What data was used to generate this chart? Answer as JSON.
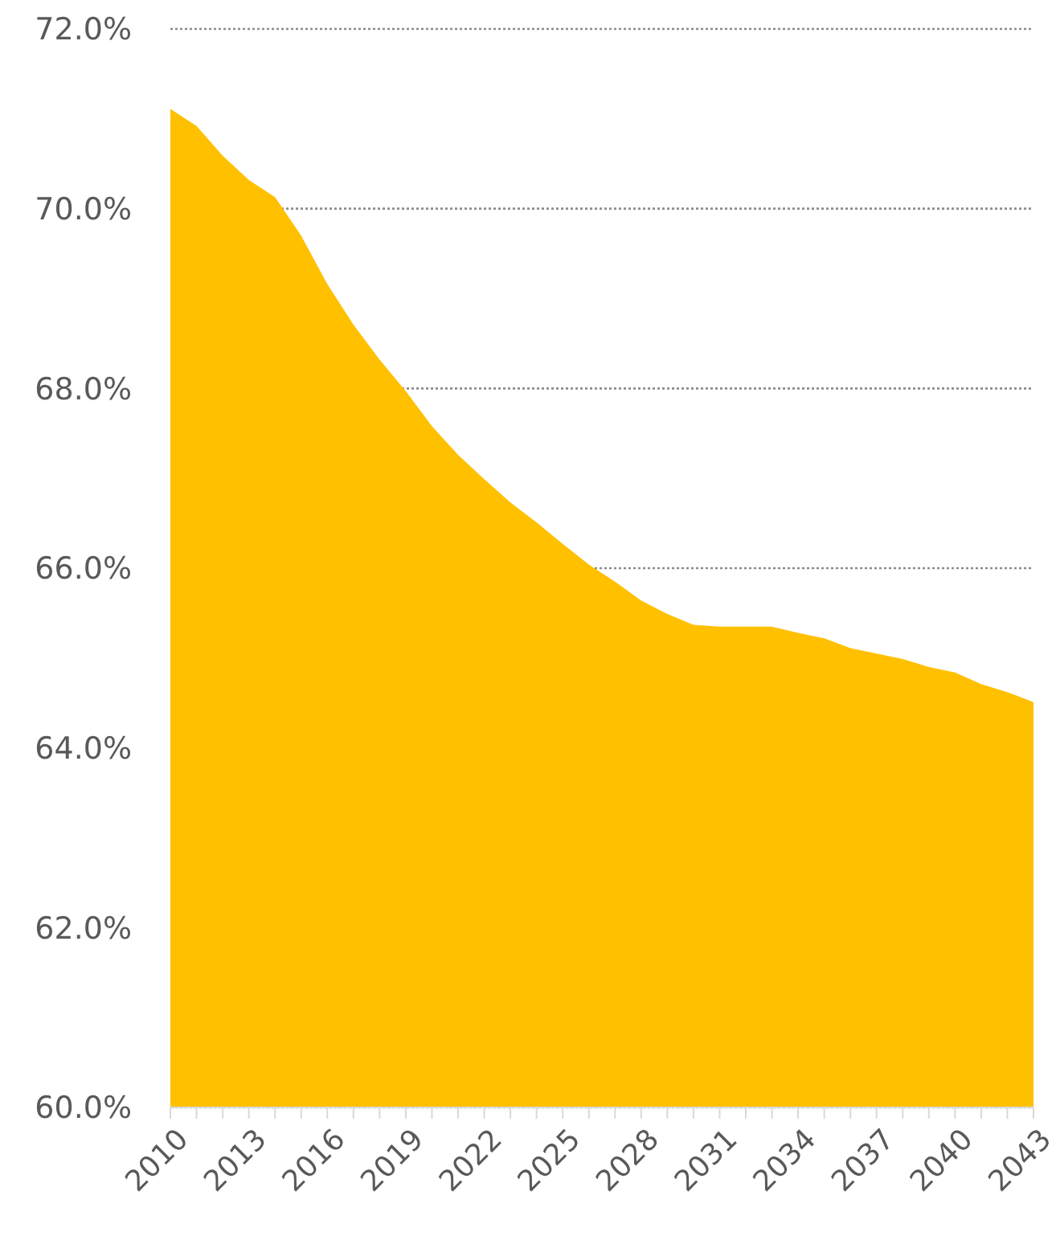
{
  "chart_data": {
    "type": "area",
    "x": [
      2010,
      2011,
      2012,
      2013,
      2014,
      2015,
      2016,
      2017,
      2018,
      2019,
      2020,
      2021,
      2022,
      2023,
      2024,
      2025,
      2026,
      2027,
      2028,
      2029,
      2030,
      2031,
      2032,
      2033,
      2034,
      2035,
      2036,
      2037,
      2038,
      2039,
      2040,
      2041,
      2042,
      2043
    ],
    "series": [
      {
        "color": "#ffc000",
        "values": [
          71.11,
          70.92,
          70.59,
          70.32,
          70.13,
          69.7,
          69.16,
          68.71,
          68.32,
          67.97,
          67.58,
          67.26,
          66.99,
          66.73,
          66.51,
          66.27,
          66.04,
          65.85,
          65.64,
          65.49,
          65.37,
          65.35,
          65.35,
          65.35,
          65.28,
          65.22,
          65.11,
          65.05,
          64.99,
          64.9,
          64.84,
          64.71,
          64.62,
          64.51
        ]
      }
    ],
    "xlim": [
      2010,
      2043
    ],
    "xticks": [
      2010,
      {
        "value": 2011,
        "label": null
      },
      {
        "value": 2012,
        "label": null
      },
      2013,
      {
        "value": 2014,
        "label": null
      },
      {
        "value": 2015,
        "label": null
      },
      2016,
      {
        "value": 2017,
        "label": null
      },
      {
        "value": 2018,
        "label": null
      },
      2019,
      {
        "value": 2020,
        "label": null
      },
      {
        "value": 2021,
        "label": null
      },
      2022,
      {
        "value": 2023,
        "label": null
      },
      {
        "value": 2024,
        "label": null
      },
      2025,
      {
        "value": 2026,
        "label": null
      },
      {
        "value": 2027,
        "label": null
      },
      2028,
      {
        "value": 2029,
        "label": null
      },
      {
        "value": 2030,
        "label": null
      },
      2031,
      {
        "value": 2032,
        "label": null
      },
      {
        "value": 2033,
        "label": null
      },
      2034,
      {
        "value": 2035,
        "label": null
      },
      {
        "value": 2036,
        "label": null
      },
      2037,
      {
        "value": 2038,
        "label": null
      },
      {
        "value": 2039,
        "label": null
      },
      2040,
      {
        "value": 2041,
        "label": null
      },
      {
        "value": 2042,
        "label": null
      },
      2043
    ],
    "ylim": [
      60,
      72
    ],
    "yticks": [
      {
        "value": 60,
        "label": "60.0%"
      },
      {
        "value": 62,
        "label": "62.0%"
      },
      {
        "value": 64,
        "label": "64.0%"
      },
      {
        "value": 66,
        "label": "66.0%"
      },
      {
        "value": 68,
        "label": "68.0%"
      },
      {
        "value": 70,
        "label": "70.0%"
      },
      {
        "value": 72,
        "label": "72.0%"
      }
    ],
    "grid": "y"
  }
}
